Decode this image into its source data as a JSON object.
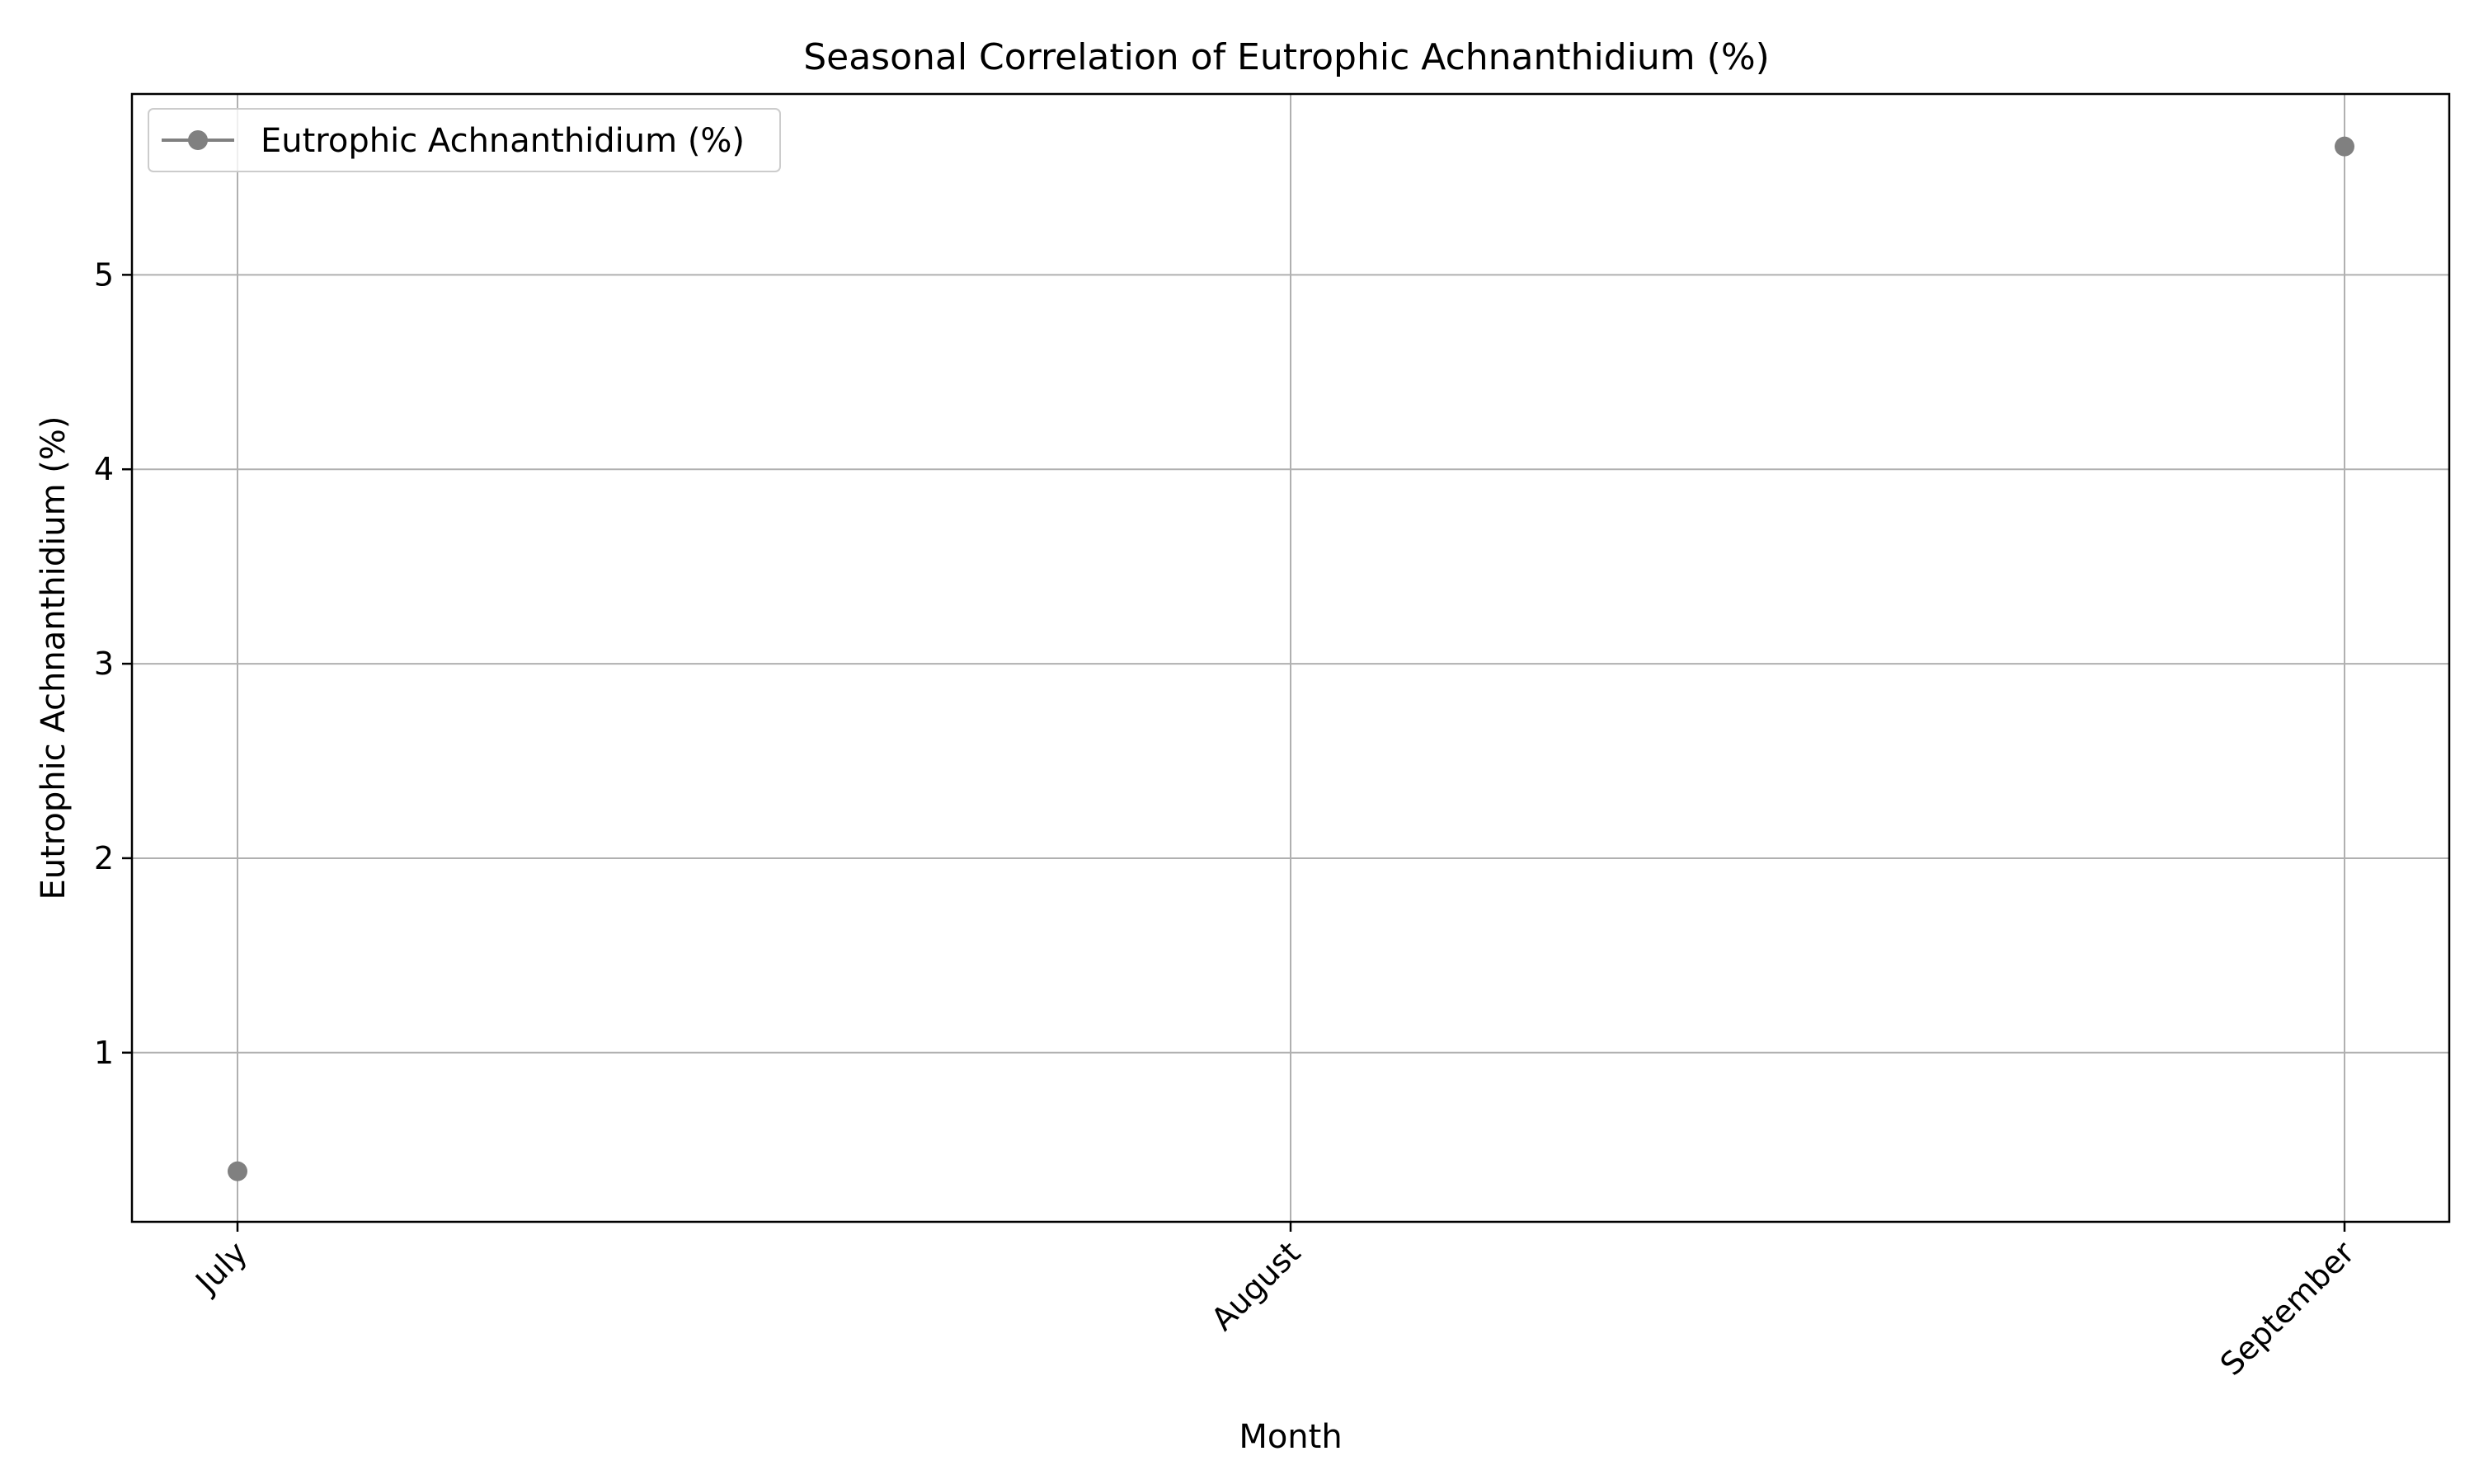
{
  "chart_data": {
    "type": "line",
    "title": "Seasonal Correlation of Eutrophic Achnanthidium (%)",
    "xlabel": "Month",
    "ylabel": "Eutrophic Achnanthidium (%)",
    "categories": [
      "July",
      "August",
      "September"
    ],
    "series": [
      {
        "name": "Eutrophic Achnanthidium (%)",
        "values": [
          0.39,
          null,
          5.66
        ],
        "color": "#808080"
      }
    ],
    "ylim": [
      0.13,
      5.93
    ],
    "yticks": [
      1,
      2,
      3,
      4,
      5
    ],
    "grid": true,
    "legend_position": "top-left",
    "x_tick_rotation_deg": 45
  }
}
